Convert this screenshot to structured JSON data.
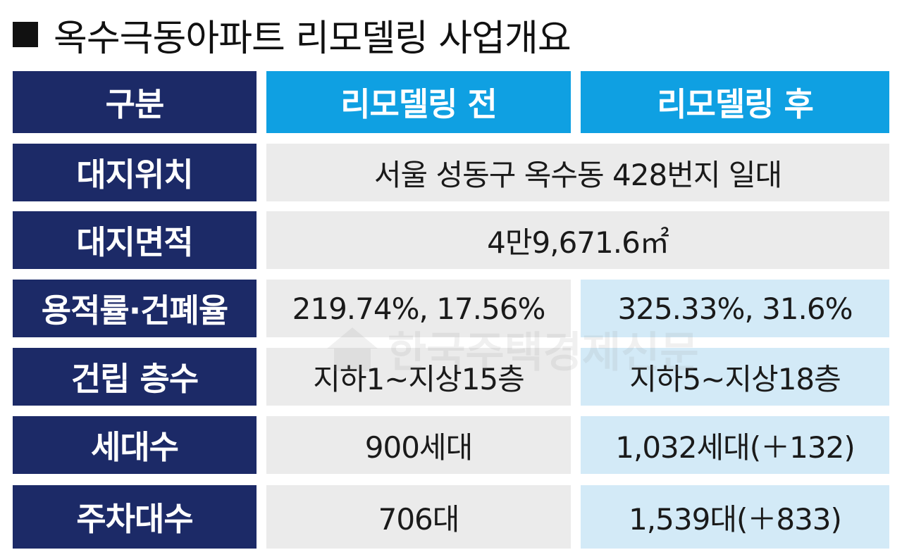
{
  "title": "옥수극동아파트 리모델링 사업개요",
  "table": {
    "header": {
      "category": "구분",
      "before": "리모델링 전",
      "after": "리모델링 후"
    },
    "rows": [
      {
        "label": "대지위치",
        "merged": "서울 성동구 옥수동 428번지 일대"
      },
      {
        "label": "대지면적",
        "merged": "4만9,671.6㎡"
      },
      {
        "label": "용적률·건폐율",
        "before": "219.74%, 17.56%",
        "after": "325.33%, 31.6%"
      },
      {
        "label": "건립 층수",
        "before": "지하1∼지상15층",
        "after": "지하5∼지상18층"
      },
      {
        "label": "세대수",
        "before": "900세대",
        "after": "1,032세대(＋132)"
      },
      {
        "label": "주차대수",
        "before": "706대",
        "after": "1,539대(＋833)"
      }
    ]
  },
  "watermark": "한국주택경제신문",
  "colors": {
    "row_header_bg": "#1c2a67",
    "col_header_bg": "#0fa0e2",
    "gray_cell_bg": "#ebebeb",
    "blue_cell_bg": "#d3eaf7"
  }
}
